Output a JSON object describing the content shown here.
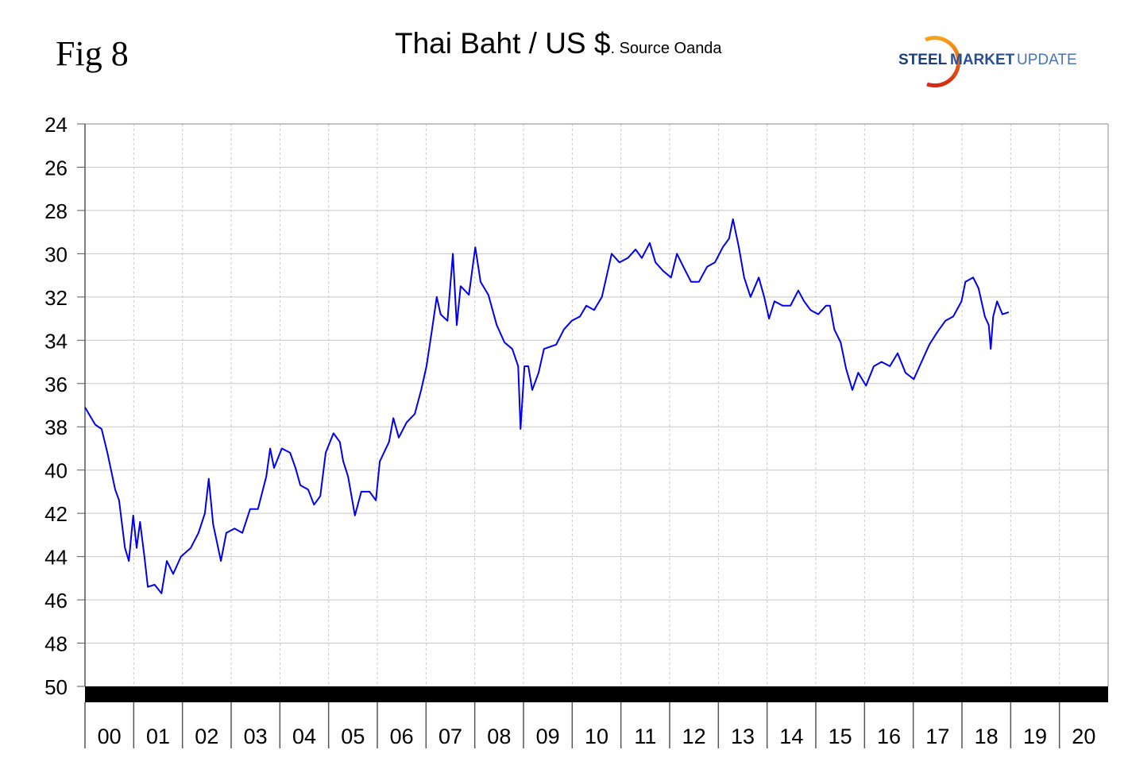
{
  "figure_label": "Fig 8",
  "logo": {
    "text": "STEEL MARKET UPDATE",
    "part1": "STEEL",
    "part2": "MARKET",
    "part3": "UPDATE"
  },
  "chart_data": {
    "type": "line",
    "title": "Thai Baht / US $",
    "subtitle": ". Source Oanda",
    "xlabel": "",
    "ylabel": "",
    "xlim": [
      2000,
      2021
    ],
    "ylim": [
      50,
      24
    ],
    "y_inverted": true,
    "grid": true,
    "y_ticks": [
      24,
      26,
      28,
      30,
      32,
      34,
      36,
      38,
      40,
      42,
      44,
      46,
      48,
      50
    ],
    "x_tick_labels": [
      "00",
      "01",
      "02",
      "03",
      "04",
      "05",
      "06",
      "07",
      "08",
      "09",
      "10",
      "11",
      "12",
      "13",
      "14",
      "15",
      "16",
      "17",
      "18",
      "19",
      "20"
    ],
    "line_color": "#0000ee",
    "series": [
      {
        "x": [
          2000.0,
          2000.21,
          2000.34,
          2000.46,
          2000.62,
          2000.7,
          2000.82,
          2000.9,
          2000.99,
          2001.06,
          2001.13,
          2001.22,
          2001.29,
          2001.43,
          2001.57,
          2001.68,
          2001.81,
          2001.97,
          2002.17,
          2002.33,
          2002.46,
          2002.54,
          2002.63,
          2002.79,
          2002.9,
          2003.07,
          2003.23,
          2003.39,
          2003.55,
          2003.72,
          2003.8,
          2003.88,
          2004.04,
          2004.21,
          2004.32,
          2004.42,
          2004.58,
          2004.7,
          2004.83,
          2004.94,
          2005.1,
          2005.23,
          2005.3,
          2005.4,
          2005.54,
          2005.67,
          2005.84,
          2005.97,
          2006.05,
          2006.24,
          2006.33,
          2006.44,
          2006.6,
          2006.77,
          2006.9,
          2007.01,
          2007.11,
          2007.22,
          2007.3,
          2007.44,
          2007.55,
          2007.63,
          2007.71,
          2007.88,
          2008.01,
          2008.12,
          2008.28,
          2008.45,
          2008.61,
          2008.77,
          2008.89,
          2008.94,
          2009.02,
          2009.1,
          2009.18,
          2009.31,
          2009.42,
          2009.67,
          2009.83,
          2009.99,
          2010.16,
          2010.29,
          2010.45,
          2010.61,
          2010.73,
          2010.81,
          2010.97,
          2011.14,
          2011.3,
          2011.43,
          2011.59,
          2011.71,
          2011.87,
          2012.03,
          2012.15,
          2012.28,
          2012.44,
          2012.6,
          2012.77,
          2012.93,
          2013.09,
          2013.22,
          2013.3,
          2013.42,
          2013.53,
          2013.66,
          2013.83,
          2013.94,
          2014.04,
          2014.15,
          2014.32,
          2014.48,
          2014.64,
          2014.76,
          2014.89,
          2015.05,
          2015.21,
          2015.29,
          2015.38,
          2015.51,
          2015.62,
          2015.75,
          2015.87,
          2016.03,
          2016.19,
          2016.35,
          2016.52,
          2016.68,
          2016.84,
          2017.01,
          2017.17,
          2017.33,
          2017.5,
          2017.66,
          2017.82,
          2017.99,
          2018.07,
          2018.23,
          2018.34,
          2018.47,
          2018.55,
          2018.59,
          2018.64,
          2018.72,
          2018.83,
          2018.96
        ],
        "y": [
          37.1,
          37.9,
          38.1,
          39.2,
          40.9,
          41.4,
          43.6,
          44.2,
          42.1,
          43.6,
          42.4,
          44.0,
          45.4,
          45.3,
          45.7,
          44.2,
          44.8,
          44.0,
          43.6,
          42.9,
          42.0,
          40.4,
          42.5,
          44.2,
          42.9,
          42.7,
          42.9,
          41.8,
          41.8,
          40.3,
          39.0,
          39.9,
          39.0,
          39.2,
          39.9,
          40.7,
          40.9,
          41.6,
          41.2,
          39.2,
          38.3,
          38.7,
          39.6,
          40.3,
          42.1,
          41.0,
          41.0,
          41.4,
          39.6,
          38.7,
          37.6,
          38.5,
          37.8,
          37.4,
          36.3,
          35.2,
          33.7,
          32.0,
          32.8,
          33.1,
          30.0,
          33.3,
          31.5,
          31.9,
          29.7,
          31.3,
          31.9,
          33.3,
          34.1,
          34.4,
          35.2,
          38.1,
          35.2,
          35.2,
          36.3,
          35.5,
          34.4,
          34.2,
          33.5,
          33.1,
          32.9,
          32.4,
          32.6,
          32.0,
          30.8,
          30.0,
          30.4,
          30.2,
          29.8,
          30.2,
          29.5,
          30.4,
          30.8,
          31.1,
          30.0,
          30.6,
          31.3,
          31.3,
          30.6,
          30.4,
          29.7,
          29.3,
          28.4,
          29.7,
          31.1,
          32.0,
          31.1,
          32.0,
          33.0,
          32.2,
          32.4,
          32.4,
          31.7,
          32.2,
          32.6,
          32.8,
          32.4,
          32.4,
          33.5,
          34.1,
          35.3,
          36.3,
          35.5,
          36.1,
          35.2,
          35.0,
          35.2,
          34.6,
          35.5,
          35.8,
          35.0,
          34.2,
          33.6,
          33.1,
          32.9,
          32.2,
          31.3,
          31.1,
          31.6,
          32.9,
          33.3,
          34.4,
          32.9,
          32.2,
          32.8,
          32.7
        ]
      }
    ]
  }
}
